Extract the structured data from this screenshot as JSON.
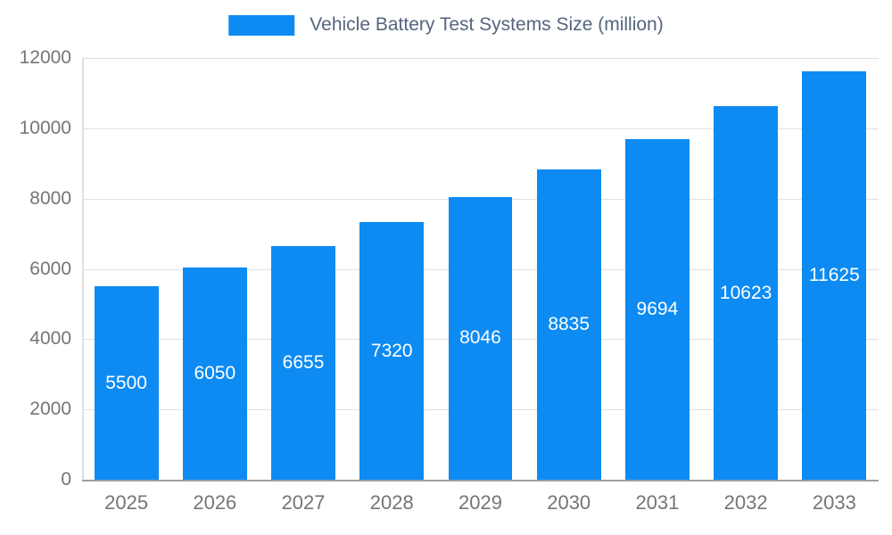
{
  "legend": {
    "label": "Vehicle Battery Test Systems Size (million)"
  },
  "colors": {
    "bar": "#0d8bf2",
    "title": "#54657e",
    "axis_label": "#757575",
    "gridline": "#e0e0e0",
    "axis_line": "#9e9e9e",
    "value_label": "#ffffff",
    "background": "#ffffff"
  },
  "chart_data": {
    "type": "bar",
    "title": "Vehicle Battery Test Systems Size (million)",
    "categories": [
      "2025",
      "2026",
      "2027",
      "2028",
      "2029",
      "2030",
      "2031",
      "2032",
      "2033"
    ],
    "values": [
      5500,
      6050,
      6655,
      7320,
      8046,
      8835,
      9694,
      10623,
      11625
    ],
    "xlabel": "",
    "ylabel": "",
    "ylim": [
      0,
      12000
    ],
    "yticks": [
      0,
      2000,
      4000,
      6000,
      8000,
      10000,
      12000
    ],
    "grid": true,
    "legend_position": "top-center",
    "value_label_style": "white, centered inside bars"
  }
}
